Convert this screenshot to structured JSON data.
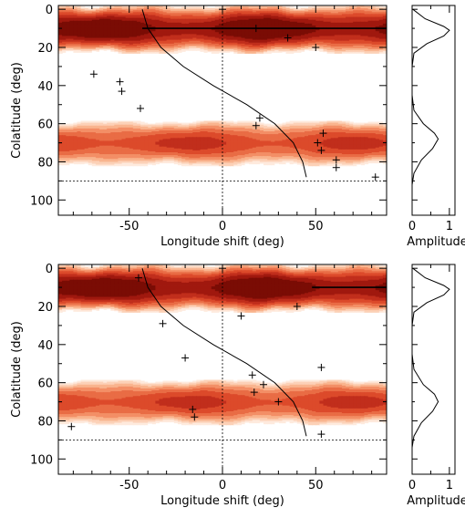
{
  "chart_data": [
    {
      "type": "heatmap",
      "panel": "top-main",
      "xlabel": "Longitude shift (deg)",
      "ylabel": "Colatitude (deg)",
      "xlim": [
        -88,
        88
      ],
      "ylim": [
        108,
        -2
      ],
      "x_ticks": [
        -50,
        0,
        50
      ],
      "y_ticks": [
        0,
        20,
        40,
        60,
        80,
        100
      ],
      "y_inverted": true,
      "colormap": [
        "#ffffff",
        "#fde0cc",
        "#f9b48e",
        "#f07d52",
        "#dc4a2b",
        "#b32014",
        "#7a0c05"
      ],
      "bands": [
        {
          "center": 10,
          "halfwidth": 13,
          "peak": 1.0
        },
        {
          "center": 70,
          "halfwidth": 12,
          "peak": 0.7
        }
      ],
      "reference_lines": {
        "vertical_x": 0,
        "horizontal_y": 90
      },
      "markers": [
        {
          "x": 0,
          "y": 0
        },
        {
          "x": 18,
          "y": 10
        },
        {
          "x": 35,
          "y": 15
        },
        {
          "x": 50,
          "y": 20
        },
        {
          "x": -69,
          "y": 34
        },
        {
          "x": -55,
          "y": 38
        },
        {
          "x": -54,
          "y": 43
        },
        {
          "x": -44,
          "y": 52
        },
        {
          "x": 20,
          "y": 57
        },
        {
          "x": 18,
          "y": 61
        },
        {
          "x": 54,
          "y": 65
        },
        {
          "x": 51,
          "y": 70
        },
        {
          "x": 53,
          "y": 74
        },
        {
          "x": 61,
          "y": 79
        },
        {
          "x": 61,
          "y": 83
        },
        {
          "x": 82,
          "y": 88
        }
      ],
      "curve": [
        {
          "x": -43,
          "y": 0
        },
        {
          "x": -40,
          "y": 10
        },
        {
          "x": -33,
          "y": 20
        },
        {
          "x": -21,
          "y": 30
        },
        {
          "x": -5,
          "y": 40
        },
        {
          "x": 13,
          "y": 50
        },
        {
          "x": 28,
          "y": 60
        },
        {
          "x": 38,
          "y": 70
        },
        {
          "x": 43,
          "y": 80
        },
        {
          "x": 45,
          "y": 88
        }
      ],
      "stroke_segment": {
        "x": [
          -43,
          88
        ],
        "y": [
          10,
          10
        ]
      }
    },
    {
      "type": "line",
      "panel": "top-amplitude",
      "xlabel": "Amplitude",
      "xlim": [
        0,
        1.15
      ],
      "ylim": [
        108,
        -2
      ],
      "x_ticks": [
        0,
        1
      ],
      "profile": [
        {
          "amp": 0.02,
          "y": 0
        },
        {
          "amp": 0.35,
          "y": 5
        },
        {
          "amp": 0.85,
          "y": 9
        },
        {
          "amp": 1.0,
          "y": 11
        },
        {
          "amp": 0.85,
          "y": 14
        },
        {
          "amp": 0.4,
          "y": 18
        },
        {
          "amp": 0.05,
          "y": 23
        },
        {
          "amp": 0.0,
          "y": 30
        },
        {
          "amp": 0.0,
          "y": 45
        },
        {
          "amp": 0.05,
          "y": 53
        },
        {
          "amp": 0.3,
          "y": 60
        },
        {
          "amp": 0.6,
          "y": 65
        },
        {
          "amp": 0.7,
          "y": 68
        },
        {
          "amp": 0.55,
          "y": 73
        },
        {
          "amp": 0.25,
          "y": 79
        },
        {
          "amp": 0.05,
          "y": 86
        },
        {
          "amp": 0.0,
          "y": 92
        }
      ]
    },
    {
      "type": "heatmap",
      "panel": "bottom-main",
      "xlabel": "Longitude shift (deg)",
      "ylabel": "Colatitude (deg)",
      "xlim": [
        -88,
        88
      ],
      "ylim": [
        108,
        -2
      ],
      "x_ticks": [
        -50,
        0,
        50
      ],
      "y_ticks": [
        0,
        20,
        40,
        60,
        80,
        100
      ],
      "y_inverted": true,
      "bands": [
        {
          "center": 10,
          "halfwidth": 13,
          "peak": 1.0
        },
        {
          "center": 70,
          "halfwidth": 12,
          "peak": 0.7
        }
      ],
      "reference_lines": {
        "vertical_x": 0,
        "horizontal_y": 90
      },
      "markers": [
        {
          "x": 0,
          "y": 0
        },
        {
          "x": -45,
          "y": 5
        },
        {
          "x": 40,
          "y": 20
        },
        {
          "x": 10,
          "y": 25
        },
        {
          "x": -32,
          "y": 29
        },
        {
          "x": -20,
          "y": 47
        },
        {
          "x": 53,
          "y": 52
        },
        {
          "x": 16,
          "y": 56
        },
        {
          "x": 22,
          "y": 61
        },
        {
          "x": 17,
          "y": 65
        },
        {
          "x": 30,
          "y": 70
        },
        {
          "x": -16,
          "y": 74
        },
        {
          "x": -15,
          "y": 78
        },
        {
          "x": -81,
          "y": 83
        },
        {
          "x": 53,
          "y": 87
        }
      ],
      "curve": [
        {
          "x": -43,
          "y": 0
        },
        {
          "x": -40,
          "y": 10
        },
        {
          "x": -33,
          "y": 20
        },
        {
          "x": -21,
          "y": 30
        },
        {
          "x": -5,
          "y": 40
        },
        {
          "x": 13,
          "y": 50
        },
        {
          "x": 28,
          "y": 60
        },
        {
          "x": 38,
          "y": 70
        },
        {
          "x": 43,
          "y": 80
        },
        {
          "x": 45,
          "y": 88
        }
      ],
      "stroke_segment": {
        "x": [
          48,
          88
        ],
        "y": [
          10,
          10
        ]
      }
    },
    {
      "type": "line",
      "panel": "bottom-amplitude",
      "xlabel": "Amplitude",
      "xlim": [
        0,
        1.15
      ],
      "ylim": [
        108,
        -2
      ],
      "x_ticks": [
        0,
        1
      ],
      "profile": [
        {
          "amp": 0.02,
          "y": 0
        },
        {
          "amp": 0.35,
          "y": 5
        },
        {
          "amp": 0.85,
          "y": 9
        },
        {
          "amp": 1.0,
          "y": 11
        },
        {
          "amp": 0.85,
          "y": 14
        },
        {
          "amp": 0.4,
          "y": 18
        },
        {
          "amp": 0.05,
          "y": 23
        },
        {
          "amp": 0.0,
          "y": 30
        },
        {
          "amp": 0.0,
          "y": 45
        },
        {
          "amp": 0.05,
          "y": 53
        },
        {
          "amp": 0.3,
          "y": 61
        },
        {
          "amp": 0.6,
          "y": 66
        },
        {
          "amp": 0.7,
          "y": 70
        },
        {
          "amp": 0.55,
          "y": 75
        },
        {
          "amp": 0.25,
          "y": 81
        },
        {
          "amp": 0.05,
          "y": 88
        },
        {
          "amp": 0.0,
          "y": 94
        }
      ]
    }
  ]
}
